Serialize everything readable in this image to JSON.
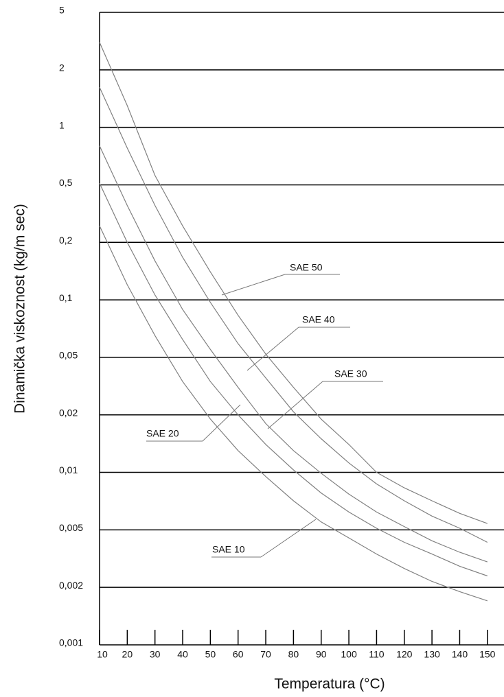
{
  "chart_data": {
    "type": "line",
    "x_label": "Temperatura (°C)",
    "y_label": "Dinamička viskoznost (kg/m sec)",
    "log_y": true,
    "grid": true,
    "xlim": [
      10,
      156
    ],
    "ylim": [
      0.001,
      5
    ],
    "xticks": [
      10,
      20,
      30,
      40,
      50,
      60,
      70,
      80,
      90,
      100,
      110,
      120,
      130,
      140,
      150
    ],
    "yticks": [
      5,
      2,
      1,
      {
        "value": 0.5,
        "label": "0,5"
      },
      {
        "value": 0.2,
        "label": "0,2"
      },
      {
        "value": 0.1,
        "label": "0,1"
      },
      {
        "value": 0.05,
        "label": "0,05"
      },
      {
        "value": 0.02,
        "label": "0,02"
      },
      {
        "value": 0.01,
        "label": "0,01"
      },
      {
        "value": 0.005,
        "label": "0,005"
      },
      {
        "value": 0.002,
        "label": "0,002"
      },
      {
        "value": 0.001,
        "label": "0,001"
      }
    ],
    "x": [
      10,
      20,
      30,
      40,
      50,
      60,
      70,
      80,
      90,
      100,
      110,
      120,
      130,
      140,
      150
    ],
    "series": [
      {
        "name": "SAE 50",
        "color": "#808080",
        "values": [
          3.1,
          1.3,
          0.56,
          0.26,
          0.14,
          0.083,
          0.052,
          0.031,
          0.019,
          0.014,
          0.01,
          0.0083,
          0.0071,
          0.0061,
          0.0054
        ]
      },
      {
        "name": "SAE 40",
        "color": "#808080",
        "values": [
          1.62,
          0.78,
          0.36,
          0.167,
          0.097,
          0.059,
          0.036,
          0.021,
          0.015,
          0.0112,
          0.0087,
          0.0071,
          0.0059,
          0.0051,
          0.0041
        ]
      },
      {
        "name": "SAE 30",
        "color": "#808080",
        "values": [
          0.8,
          0.36,
          0.16,
          0.089,
          0.055,
          0.031,
          0.018,
          0.013,
          0.0099,
          0.0077,
          0.0062,
          0.0052,
          0.0042,
          0.0035,
          0.003
        ]
      },
      {
        "name": "SAE 20",
        "color": "#808080",
        "values": [
          0.51,
          0.2,
          0.106,
          0.062,
          0.034,
          0.02,
          0.014,
          0.0103,
          0.0078,
          0.0062,
          0.0051,
          0.0041,
          0.0034,
          0.0028,
          0.0024
        ]
      },
      {
        "name": "SAE 10",
        "color": "#808080",
        "values": [
          0.26,
          0.12,
          0.065,
          0.034,
          0.019,
          0.013,
          0.0095,
          0.0071,
          0.0055,
          0.0044,
          0.0034,
          0.0027,
          0.0022,
          0.0019,
          0.0017
        ]
      }
    ]
  }
}
